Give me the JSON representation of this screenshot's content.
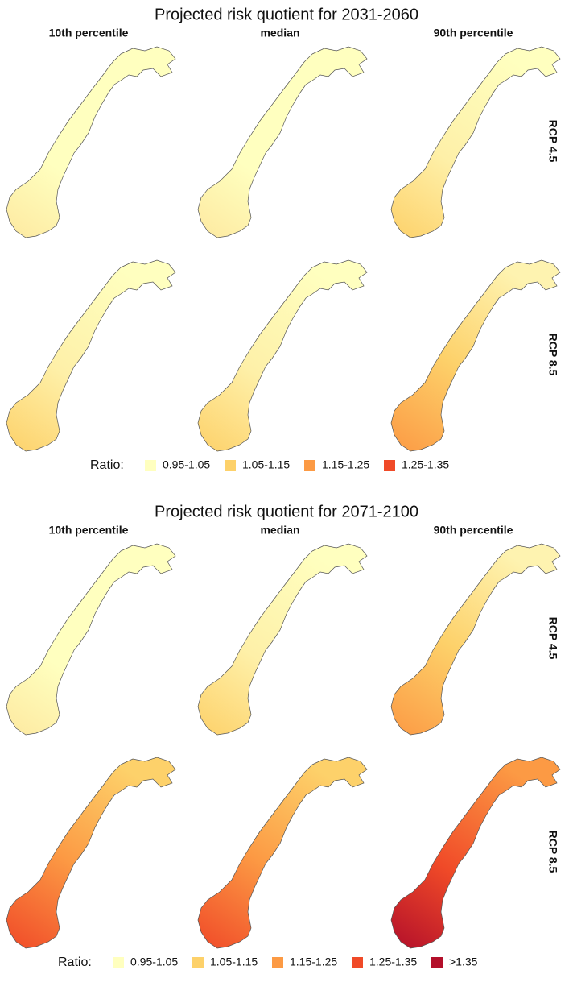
{
  "figures": [
    {
      "title": "Projected risk quotient for 2031-2060",
      "columns": [
        "10th percentile",
        "median",
        "90th percentile"
      ],
      "rows": [
        "RCP 4.5",
        "RCP 8.5"
      ],
      "legend": {
        "title": "Ratio:",
        "items": [
          {
            "label": "0.95-1.05",
            "color": "#ffffbf"
          },
          {
            "label": "1.05-1.15",
            "color": "#fdd16a"
          },
          {
            "label": "1.15-1.25",
            "color": "#fc9a44"
          },
          {
            "label": "1.25-1.35",
            "color": "#f04a28"
          }
        ]
      }
    },
    {
      "title": "Projected risk quotient for 2071-2100",
      "columns": [
        "10th percentile",
        "median",
        "90th percentile"
      ],
      "rows": [
        "RCP 4.5",
        "RCP 8.5"
      ],
      "legend": {
        "title": "Ratio:",
        "items": [
          {
            "label": "0.95-1.05",
            "color": "#ffffbf"
          },
          {
            "label": "1.05-1.15",
            "color": "#fdd16a"
          },
          {
            "label": "1.15-1.25",
            "color": "#fc9a44"
          },
          {
            "label": "1.25-1.35",
            "color": "#f04a28"
          },
          {
            "label": ">1.35",
            "color": "#b30f2a"
          }
        ]
      }
    }
  ]
}
